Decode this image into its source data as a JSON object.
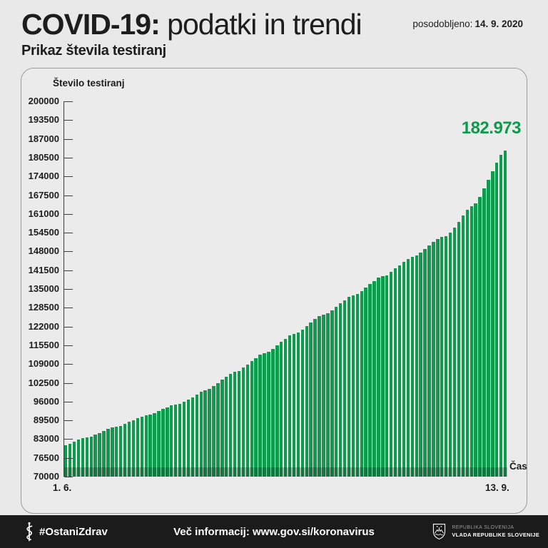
{
  "header": {
    "title_bold": "COVID-19:",
    "title_rest": " podatki in trendi",
    "updated_label": "posodobljeno:",
    "updated_date": "14. 9. 2020",
    "subtitle": "Prikaz števila testiranj"
  },
  "chart_data": {
    "type": "bar",
    "title": "Prikaz števila testiranj",
    "ylabel": "Število testiranj",
    "xlabel": "Čas",
    "ylim": [
      70000,
      200000
    ],
    "ytick_step": 6500,
    "yticks": [
      200000,
      193500,
      187000,
      180500,
      174000,
      167500,
      161000,
      154500,
      148000,
      141500,
      135000,
      128500,
      122000,
      115500,
      109000,
      102500,
      96000,
      89500,
      83000,
      76500,
      70000
    ],
    "x_start_label": "1. 6.",
    "x_end_label": "13. 9.",
    "grid": false,
    "legend": "none",
    "annotation": {
      "text": "182.973",
      "value": 182973
    },
    "bar_color": "#0f9b4e",
    "values": [
      80777,
      81417,
      82087,
      82737,
      83347,
      83647,
      83877,
      84497,
      85157,
      85827,
      86467,
      87067,
      87377,
      87617,
      88257,
      88927,
      89607,
      90257,
      90877,
      91197,
      91447,
      92097,
      92787,
      93487,
      93967,
      94607,
      94937,
      95197,
      95877,
      96597,
      97547,
      98527,
      99467,
      99947,
      100327,
      101347,
      102447,
      103567,
      104657,
      105697,
      106217,
      106627,
      107707,
      108857,
      110017,
      111137,
      112207,
      112747,
      113177,
      114277,
      115447,
      116627,
      117767,
      118857,
      119407,
      119847,
      120957,
      122147,
      123347,
      124507,
      125607,
      126167,
      126617,
      127697,
      128847,
      130007,
      131137,
      132217,
      132767,
      133207,
      134297,
      135457,
      136627,
      137767,
      138857,
      139337,
      139787,
      140887,
      142067,
      143257,
      144407,
      145507,
      146077,
      146537,
      147657,
      148857,
      150067,
      151237,
      152357,
      152937,
      153407,
      154557,
      156357,
      158307,
      160357,
      162357,
      163557,
      164557,
      166957,
      169757,
      172707,
      175707,
      178757,
      181357,
      182973
    ]
  },
  "footer": {
    "hashtag": "#OstaniZdrav",
    "hashtag_icon": "asclepius-staff-icon",
    "info": "Več informacij: www.gov.si/koronavirus",
    "gov_icon": "slovenia-coat-of-arms-icon",
    "gov_line1": "REPUBLIKA SLOVENIJA",
    "gov_line2": "VLADA REPUBLIKE SLOVENIJE"
  },
  "colors": {
    "bar_green": "#0f9b4e",
    "annotation_green": "#0c9b4c",
    "page_bg": "#e9e9e9",
    "footer_bg": "#1b1b1b",
    "text": "#1d1d1d"
  }
}
